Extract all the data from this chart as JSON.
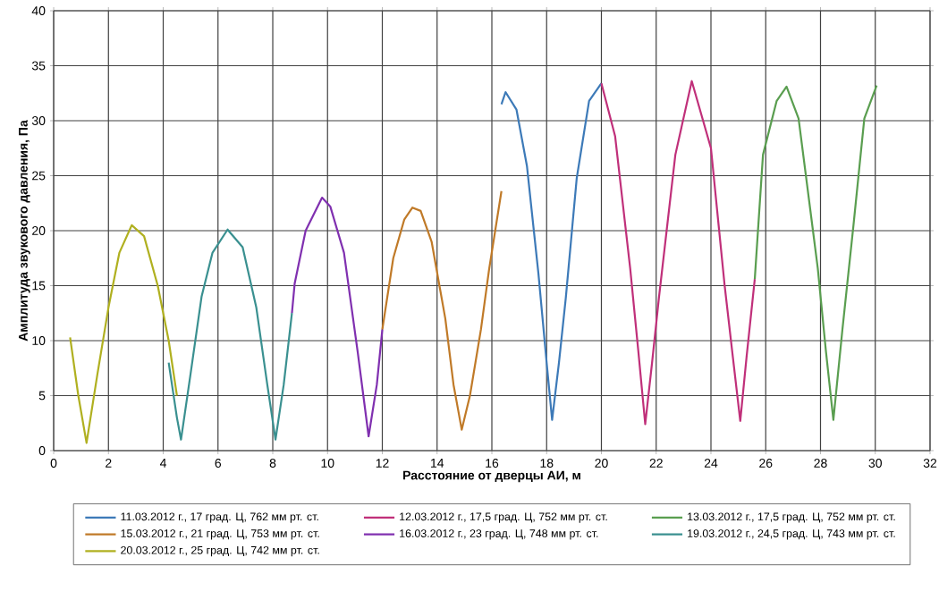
{
  "chart_data": {
    "type": "line",
    "xlabel": "Расстояние от дверцы АИ, м",
    "ylabel": "Амплитуда звукового давления, Па",
    "xlim": [
      0,
      32
    ],
    "xticks": [
      0,
      2,
      4,
      6,
      8,
      10,
      12,
      14,
      16,
      18,
      20,
      22,
      24,
      26,
      28,
      30,
      32
    ],
    "ylim": [
      0,
      40
    ],
    "yticks": [
      0,
      5,
      10,
      15,
      20,
      25,
      30,
      35,
      40
    ],
    "grid": true,
    "legend": "bottom",
    "marker": "none",
    "line_style": "solid",
    "series": [
      {
        "name": "11.03.2012 г., 17 град. Ц, 762 мм рт. ст.",
        "color": "#3d7ab8",
        "x": [
          16.35,
          16.5,
          16.9,
          17.28,
          17.7,
          18.0,
          18.2,
          18.45,
          18.7,
          19.1,
          19.55,
          20.0
        ],
        "values": [
          31.5,
          32.6,
          31.0,
          25.9,
          16.1,
          8.0,
          2.8,
          8.0,
          13.9,
          24.8,
          31.8,
          33.4
        ]
      },
      {
        "name": "12.03.2012 г., 17,5 град. Ц, 752 мм рт. ст.",
        "color": "#c0307a",
        "x": [
          20.0,
          20.5,
          21.05,
          21.35,
          21.6,
          21.85,
          22.1,
          22.7,
          23.3,
          24.0,
          24.5,
          24.8,
          25.07,
          25.3,
          25.6
        ],
        "values": [
          33.4,
          28.6,
          16.6,
          9.0,
          2.4,
          8.0,
          13.9,
          26.9,
          33.6,
          27.5,
          15.0,
          8.5,
          2.7,
          8.5,
          15.6
        ]
      },
      {
        "name": "13.03.2012 г., 17,5 град. Ц, 752 мм рт. ст.",
        "color": "#5a9e50",
        "x": [
          25.6,
          25.9,
          26.4,
          26.76,
          27.2,
          27.9,
          28.2,
          28.47,
          28.8,
          29.2,
          29.6,
          30.05
        ],
        "values": [
          15.6,
          26.9,
          31.8,
          33.1,
          30.2,
          16.6,
          9.0,
          2.8,
          11.0,
          20.4,
          30.2,
          33.2
        ]
      },
      {
        "name": "15.03.2012 г., 21 град. Ц, 753 мм рт. ст.",
        "color": "#c07a28",
        "x": [
          12.0,
          12.4,
          12.8,
          13.1,
          13.4,
          13.8,
          14.3,
          14.6,
          14.9,
          15.2,
          15.6,
          15.9,
          16.35
        ],
        "values": [
          11.0,
          17.5,
          21.0,
          22.1,
          21.8,
          19.0,
          12.0,
          6.0,
          1.9,
          5.0,
          11.0,
          16.5,
          23.6
        ]
      },
      {
        "name": "16.03.2012 г., 23 град. Ц, 748 мм рт. ст.",
        "color": "#8030b0",
        "x": [
          8.7,
          8.8,
          9.2,
          9.5,
          9.8,
          10.1,
          10.6,
          11.1,
          11.5,
          11.8,
          12.0
        ],
        "values": [
          12.5,
          15.2,
          20.0,
          21.5,
          23.0,
          22.2,
          18.0,
          9.0,
          1.3,
          6.0,
          11.0
        ]
      },
      {
        "name": "19.03.2012 г., 24,5 град. Ц, 743 мм рт. ст.",
        "color": "#3a9090",
        "x": [
          4.2,
          4.5,
          4.65,
          5.0,
          5.4,
          5.8,
          6.35,
          6.9,
          7.4,
          7.8,
          8.1,
          8.4,
          8.7
        ],
        "values": [
          8.0,
          3.0,
          1.0,
          7.0,
          14.0,
          18.0,
          20.1,
          18.5,
          13.0,
          6.0,
          1.0,
          6.0,
          12.5
        ]
      },
      {
        "name": "20.03.2012 г., 25 град. Ц, 742 мм рт. ст.",
        "color": "#b0b020",
        "x": [
          0.6,
          0.9,
          1.2,
          1.6,
          2.0,
          2.4,
          2.85,
          3.3,
          3.8,
          4.2,
          4.5
        ],
        "values": [
          10.3,
          5.0,
          0.7,
          7.0,
          13.0,
          18.0,
          20.5,
          19.5,
          15.0,
          10.0,
          5.0
        ]
      }
    ]
  }
}
